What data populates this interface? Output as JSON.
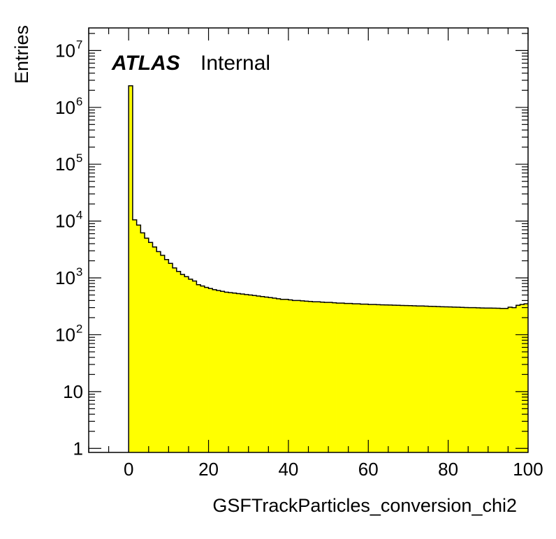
{
  "chart_data": {
    "type": "bar",
    "style": "histogram",
    "xlabel": "GSFTrackParticles_conversion_chi2",
    "ylabel": "Entries",
    "label": {
      "experiment": "ATLAS",
      "status": "Internal"
    },
    "xlim": [
      -10,
      100
    ],
    "ylim": [
      0.85,
      25000000
    ],
    "yscale": "log",
    "bin_width": 1,
    "bin_start": 0,
    "fill_color": "#ffff00",
    "line_color": "#000000",
    "x_ticks": [
      "0",
      "20",
      "40",
      "60",
      "80",
      "100"
    ],
    "y_ticks": [
      {
        "value": 1,
        "base": "1",
        "exp": ""
      },
      {
        "value": 10,
        "base": "10",
        "exp": ""
      },
      {
        "value": 100,
        "base": "10",
        "exp": "2"
      },
      {
        "value": 1000,
        "base": "10",
        "exp": "3"
      },
      {
        "value": 10000,
        "base": "10",
        "exp": "4"
      },
      {
        "value": 100000,
        "base": "10",
        "exp": "5"
      },
      {
        "value": 1000000,
        "base": "10",
        "exp": "6"
      },
      {
        "value": 10000000,
        "base": "10",
        "exp": "7"
      }
    ],
    "values": [
      2400000,
      10500,
      8500,
      6200,
      5000,
      4200,
      3500,
      2900,
      2500,
      2100,
      1800,
      1500,
      1300,
      1150,
      1050,
      950,
      880,
      760,
      720,
      680,
      650,
      620,
      600,
      580,
      560,
      550,
      540,
      530,
      520,
      510,
      500,
      490,
      480,
      470,
      460,
      450,
      440,
      430,
      420,
      420,
      410,
      400,
      400,
      395,
      390,
      385,
      380,
      380,
      375,
      370,
      370,
      365,
      360,
      360,
      355,
      355,
      350,
      350,
      345,
      345,
      340,
      340,
      338,
      336,
      335,
      333,
      331,
      330,
      328,
      326,
      325,
      323,
      321,
      320,
      318,
      316,
      315,
      313,
      311,
      310,
      308,
      306,
      305,
      303,
      301,
      300,
      300,
      298,
      296,
      295,
      295,
      293,
      292,
      290,
      290,
      305,
      300,
      330,
      340,
      350
    ]
  }
}
